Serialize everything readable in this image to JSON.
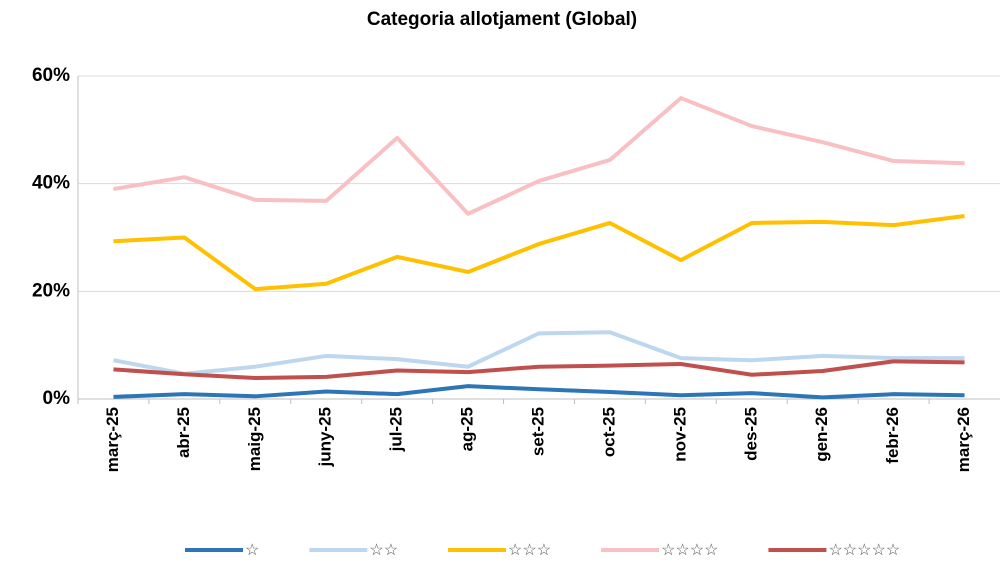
{
  "chart_data": {
    "type": "line",
    "title": "Categoria allotjament (Global)",
    "categories": [
      "març-25",
      "abr-25",
      "maig-25",
      "juny-25",
      "jul-25",
      "ag-25",
      "set-25",
      "oct-25",
      "nov-25",
      "des-25",
      "gen-26",
      "febr-26",
      "març-26"
    ],
    "series": [
      {
        "name": "☆",
        "color": "#2e75b6",
        "values": [
          0.4,
          0.9,
          0.5,
          1.4,
          0.9,
          2.4,
          1.8,
          1.3,
          0.7,
          1.1,
          0.3,
          0.9,
          0.7
        ]
      },
      {
        "name": "☆☆",
        "color": "#bdd7ee",
        "values": [
          7.2,
          4.7,
          6,
          8,
          7.4,
          6,
          12.2,
          12.4,
          7.6,
          7.2,
          8,
          7.6,
          7.6
        ]
      },
      {
        "name": "☆☆☆",
        "color": "#ffc000",
        "values": [
          29.3,
          30,
          20.4,
          21.4,
          26.4,
          23.6,
          28.8,
          32.7,
          25.8,
          32.7,
          32.9,
          32.3,
          34
        ]
      },
      {
        "name": "☆☆☆☆",
        "color": "#f9c0c4",
        "values": [
          39,
          41.2,
          37,
          36.8,
          48.5,
          34.4,
          40.5,
          44.4,
          55.9,
          50.7,
          47.7,
          44.2,
          43.8
        ]
      },
      {
        "name": "☆☆☆☆☆",
        "color": "#c0504d",
        "values": [
          5.5,
          4.6,
          3.9,
          4.1,
          5.3,
          5,
          6,
          6.2,
          6.5,
          4.5,
          5.2,
          7,
          6.8
        ]
      }
    ],
    "ylim": [
      0,
      60
    ],
    "yticks": [
      {
        "value": 0,
        "label": "0%"
      },
      {
        "value": 20,
        "label": "20%"
      },
      {
        "value": 40,
        "label": "40%"
      },
      {
        "value": 60,
        "label": "60%"
      }
    ],
    "grid": true
  }
}
